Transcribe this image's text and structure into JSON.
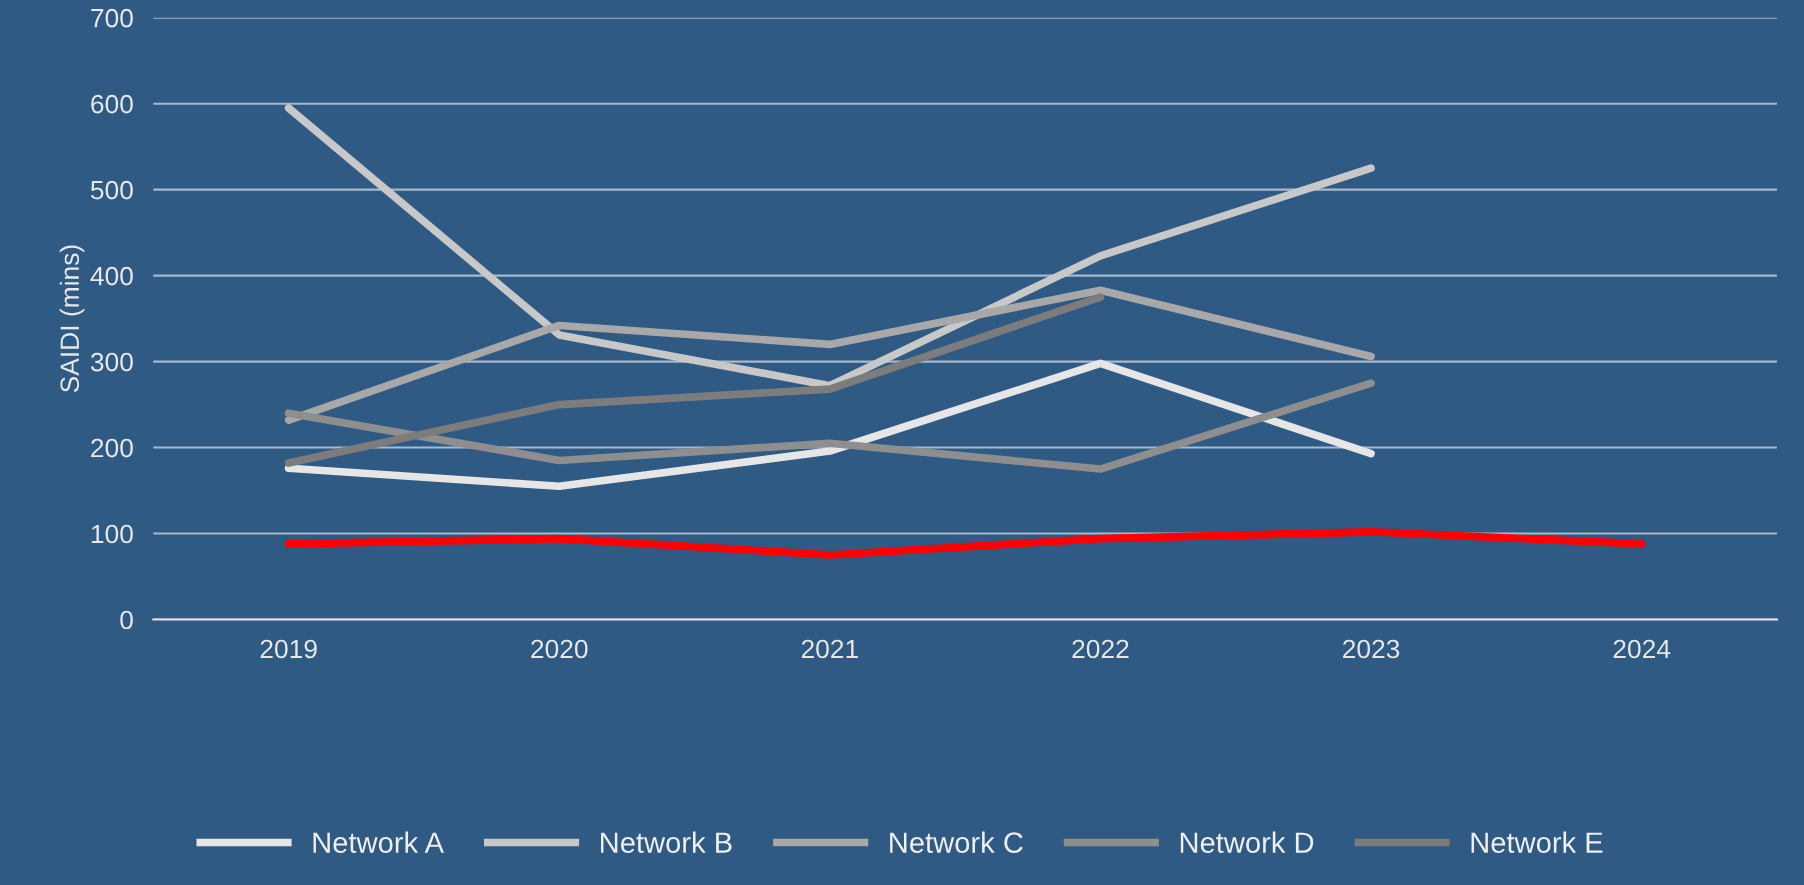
{
  "chart_data": {
    "type": "line",
    "ylabel": "SAIDI (mins)",
    "categories": [
      "2019",
      "2020",
      "2021",
      "2022",
      "2023",
      "2024"
    ],
    "series": [
      {
        "color": "#ff0000",
        "values": [
          88,
          94,
          75,
          94,
          102,
          88
        ]
      },
      {
        "name": "Network A",
        "color": "#e6e6e6",
        "values": [
          176,
          155,
          196,
          298,
          193,
          null
        ]
      },
      {
        "name": "Network B",
        "color": "#c8c8c8",
        "values": [
          595,
          331,
          272,
          423,
          525,
          null
        ]
      },
      {
        "name": "Network C",
        "color": "#a8a8a8",
        "values": [
          232,
          342,
          320,
          383,
          306,
          null
        ]
      },
      {
        "name": "Network D",
        "color": "#8e8e8e",
        "values": [
          240,
          185,
          205,
          175,
          275,
          null
        ]
      },
      {
        "name": "Network E",
        "color": "#7c7c7c",
        "values": [
          182,
          250,
          268,
          375,
          null,
          null
        ]
      }
    ],
    "ylim": [
      0,
      700
    ],
    "yticks": [
      0,
      100,
      200,
      300,
      400,
      500,
      600,
      700
    ],
    "grid": "y",
    "legend": "bottom",
    "marker": "none",
    "line_style": "solid"
  }
}
